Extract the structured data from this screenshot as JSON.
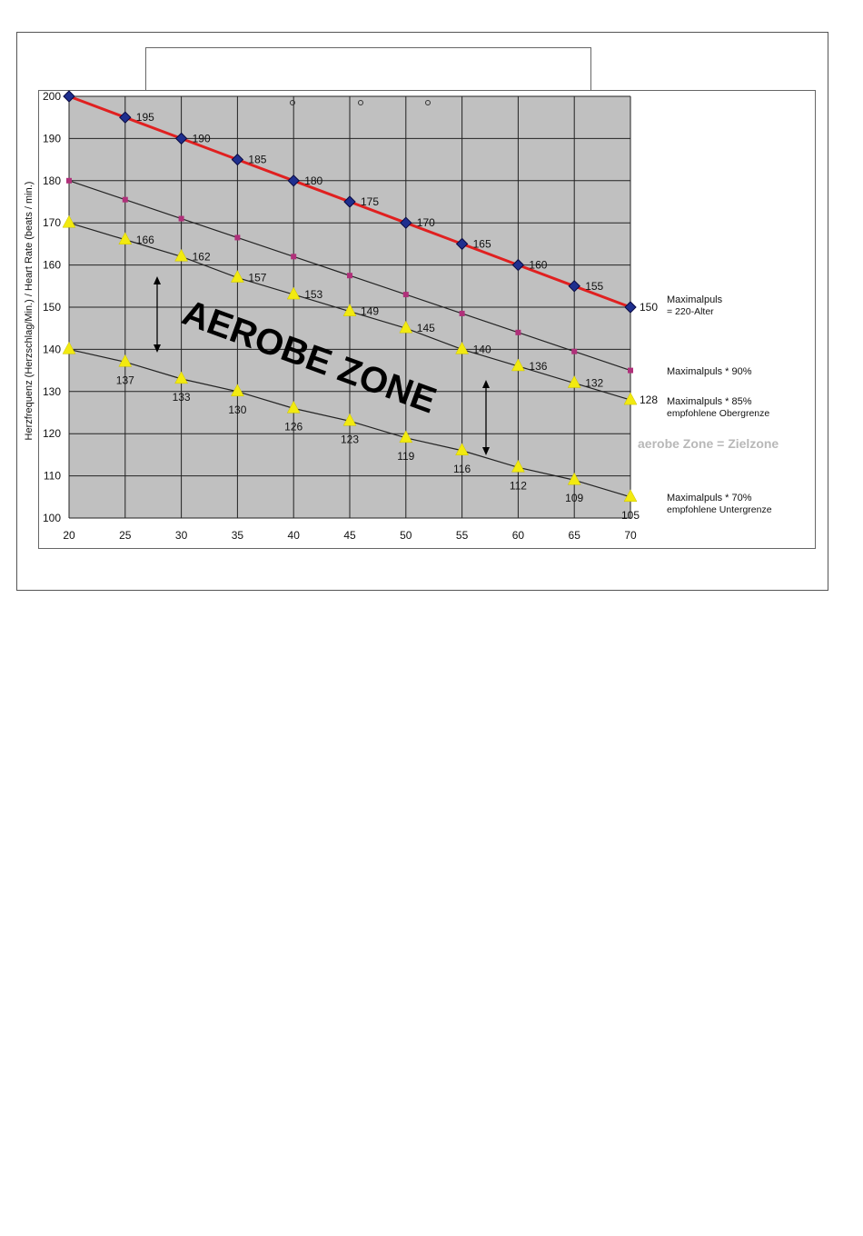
{
  "title_box": "",
  "chart_data": {
    "type": "line",
    "title": "",
    "xlabel": "",
    "ylabel": "Herzfrequenz (Herzschlag/Min.) / Heart Rate (beats / min.)",
    "x": [
      20,
      25,
      30,
      35,
      40,
      45,
      50,
      55,
      60,
      65,
      70
    ],
    "xlim": [
      20,
      70
    ],
    "ylim": [
      100,
      200
    ],
    "x_ticks": [
      20,
      25,
      30,
      35,
      40,
      45,
      50,
      55,
      60,
      65,
      70
    ],
    "y_ticks": [
      100,
      110,
      120,
      130,
      140,
      150,
      160,
      170,
      180,
      190,
      200
    ],
    "grid": true,
    "plot_background": "#c0c0c0",
    "series": [
      {
        "name": "Maximalpuls = 220-Alter",
        "legend_lines": [
          "Maximalpuls",
          "= 220-Alter"
        ],
        "color": "#e02020",
        "marker_color": "#1f2f8f",
        "marker": "diamond",
        "values": [
          200,
          195,
          190,
          185,
          180,
          175,
          170,
          165,
          160,
          155,
          150
        ],
        "labels": [
          "",
          "195",
          "190",
          "185",
          "180",
          "175",
          "170",
          "165",
          "160",
          "155",
          "150"
        ]
      },
      {
        "name": "Maximalpuls * 90%",
        "legend_lines": [
          "Maximalpuls * 90%"
        ],
        "color": "#222222",
        "marker_color": "#b0307a",
        "marker": "square",
        "values": [
          180,
          175.5,
          171,
          166.5,
          162,
          157.5,
          153,
          148.5,
          144,
          139.5,
          135
        ],
        "labels": [
          "",
          "",
          "",
          "",
          "",
          "",
          "",
          "",
          "",
          "",
          ""
        ]
      },
      {
        "name": "Maximalpuls * 85% empfohlene Obergrenze",
        "legend_lines": [
          "Maximalpuls * 85%",
          "empfohlene Obergrenze"
        ],
        "color": "#222222",
        "marker_color": "#f2ea10",
        "marker": "triangle",
        "values": [
          170,
          166,
          162,
          157,
          153,
          149,
          145,
          140,
          136,
          132,
          128
        ],
        "labels": [
          "",
          "166",
          "162",
          "157",
          "153",
          "149",
          "145",
          "140",
          "136",
          "132",
          "128"
        ]
      },
      {
        "name": "Maximalpuls * 70% empfohlene Untergrenze",
        "legend_lines": [
          "Maximalpuls * 70%",
          "empfohlene Untergrenze"
        ],
        "color": "#222222",
        "marker_color": "#f2ea10",
        "marker": "triangle",
        "values": [
          140,
          137,
          133,
          130,
          126,
          123,
          119,
          116,
          112,
          109,
          105
        ],
        "labels": [
          "",
          "137",
          "133",
          "130",
          "126",
          "123",
          "119",
          "116",
          "112",
          "109",
          "105"
        ]
      }
    ],
    "annotations": {
      "zone_label": "AEROBE ZONE",
      "zone_note": "aerobe Zone = Zielzone",
      "zone_note_color": "#b8b8b8"
    }
  }
}
